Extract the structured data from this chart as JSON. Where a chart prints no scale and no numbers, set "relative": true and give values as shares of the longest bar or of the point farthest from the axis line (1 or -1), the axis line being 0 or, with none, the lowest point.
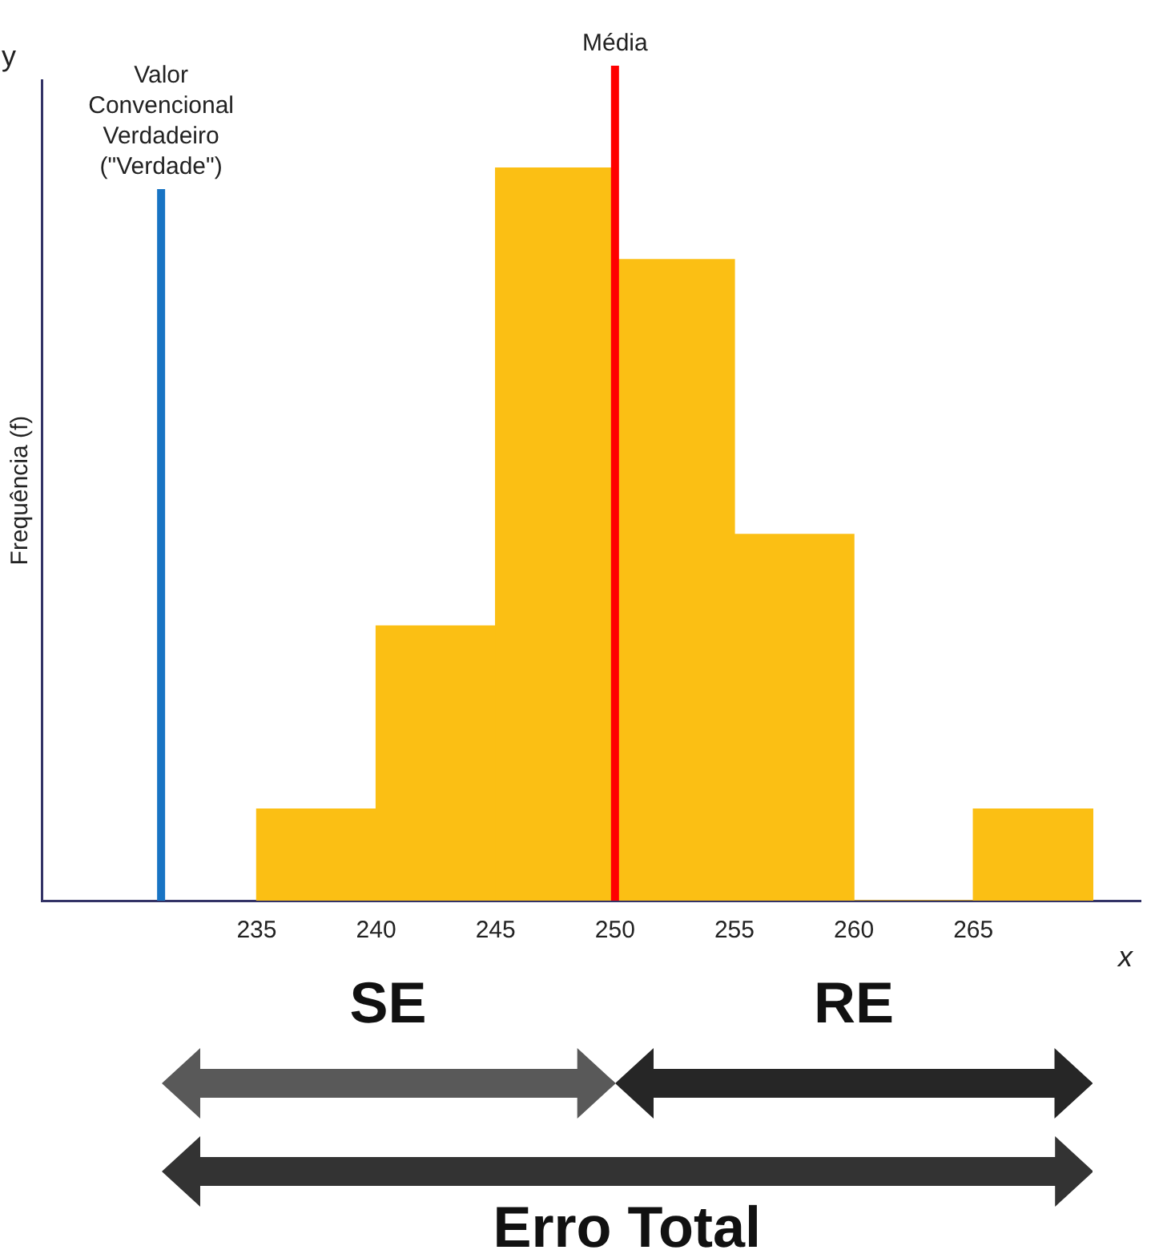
{
  "chart_data": {
    "type": "bar",
    "relative": true,
    "x": [
      237.5,
      242.5,
      247.5,
      252.5,
      257.5,
      262.5,
      267.5
    ],
    "values": [
      0.125,
      0.375,
      1,
      0.875,
      0.5,
      0,
      0.125
    ],
    "color": "#fbbf14",
    "xlim": [
      226,
      272
    ],
    "xticks": [
      235,
      240,
      245,
      250,
      255,
      260,
      265
    ],
    "xlabel": "x",
    "ylabel": "Frequência (f)",
    "ref_lines": [
      {
        "axis": "x",
        "value": 231,
        "label": "Valor Convencional Verdadeiro (\"Verdade\")",
        "color": "#1874c4"
      },
      {
        "axis": "x",
        "value": 250,
        "label": "Média",
        "color": "#ff0000"
      }
    ],
    "annotations": [
      "y",
      "SE",
      "RE",
      "Erro Total"
    ],
    "grid": false,
    "legend": false
  }
}
